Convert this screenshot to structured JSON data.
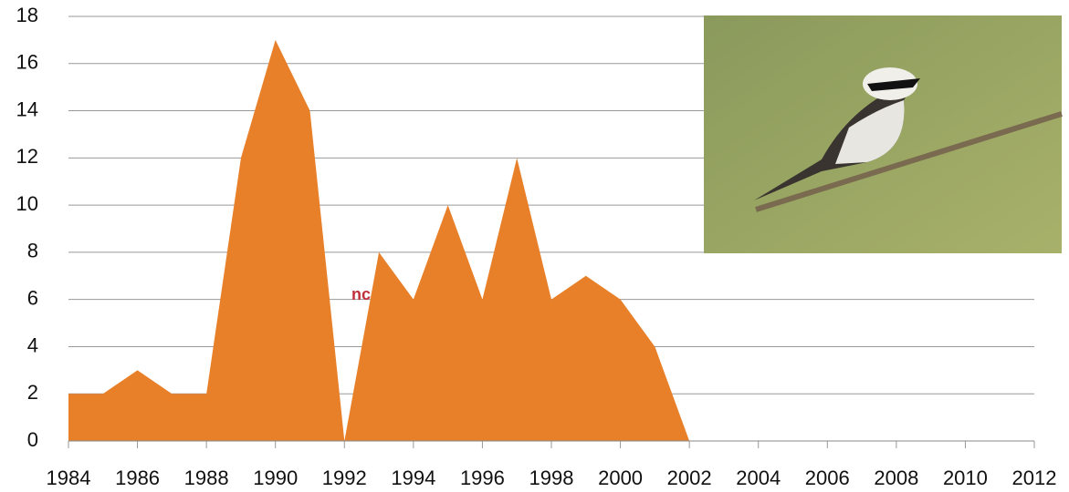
{
  "chart_data": {
    "type": "area",
    "x": [
      1984,
      1985,
      1986,
      1987,
      1988,
      1989,
      1990,
      1991,
      1992,
      1993,
      1994,
      1995,
      1996,
      1997,
      1998,
      1999,
      2000,
      2001,
      2002
    ],
    "values": [
      2,
      2,
      3,
      2,
      2,
      12,
      17,
      14,
      0,
      8,
      6,
      10,
      6,
      12,
      6,
      7,
      6,
      4,
      0
    ],
    "color": "#e8802a",
    "xlim": [
      1984,
      2012
    ],
    "xticks": [
      1984,
      1986,
      1988,
      1990,
      1992,
      1994,
      1996,
      1998,
      2000,
      2002,
      2004,
      2006,
      2008,
      2010,
      2012
    ],
    "ylim": [
      0,
      18
    ],
    "yticks": [
      0,
      2,
      4,
      6,
      8,
      10,
      12,
      14,
      16,
      18
    ],
    "grid": true,
    "annotation": "nc"
  }
}
